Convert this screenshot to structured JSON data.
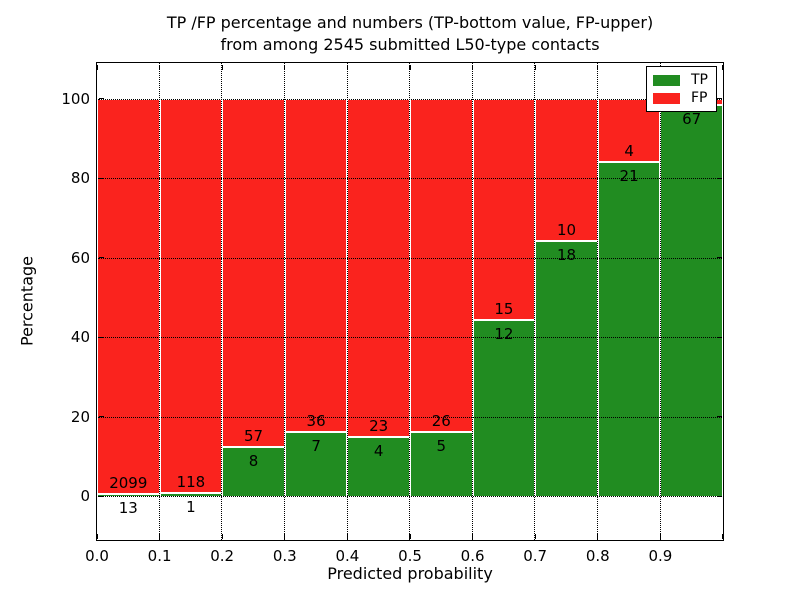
{
  "figure": {
    "background": "#ffffff"
  },
  "chart_data": {
    "type": "bar",
    "subtype": "stacked-percentage-histogram",
    "title_line1": "TP /FP percentage and numbers (TP-bottom value, FP-upper)",
    "title_line2": "from among 2545 submitted L50-type contacts",
    "xlabel": "Predicted probability",
    "ylabel": "Percentage",
    "xlim": [
      0.0,
      1.0
    ],
    "ylim": [
      -11,
      109
    ],
    "bin_width": 0.1,
    "bars_x_start": [
      0.0,
      0.1,
      0.2,
      0.3,
      0.4,
      0.5,
      0.6,
      0.7,
      0.8,
      0.9
    ],
    "x_tick_values": [
      0.0,
      0.1,
      0.2,
      0.3,
      0.4,
      0.5,
      0.6,
      0.7,
      0.8,
      0.9,
      1.0
    ],
    "x_tick_labels": [
      "0.0",
      "0.1",
      "0.2",
      "0.3",
      "0.4",
      "0.5",
      "0.6",
      "0.7",
      "0.8",
      "0.9",
      ""
    ],
    "y_tick_values": [
      0,
      20,
      40,
      60,
      80,
      100
    ],
    "y_tick_labels": [
      "0",
      "20",
      "40",
      "60",
      "80",
      "100"
    ],
    "grid": {
      "style": "dotted",
      "color": "#000000",
      "drawn_over_bars": true
    },
    "series": [
      {
        "name": "TP",
        "color": "#218c21",
        "values": [
          13,
          1,
          8,
          7,
          4,
          5,
          12,
          18,
          21,
          67
        ],
        "labels_shown": [
          "13",
          "1",
          "8",
          "7",
          "4",
          "5",
          "12",
          "18",
          "21",
          "67"
        ]
      },
      {
        "name": "FP",
        "color": "#fa231e",
        "values": [
          2099,
          118,
          57,
          36,
          23,
          26,
          15,
          10,
          4,
          1
        ],
        "labels_shown": [
          "2099",
          "118",
          "57",
          "36",
          "23",
          "26",
          "15",
          "10",
          "4",
          ""
        ]
      }
    ],
    "legend": {
      "position": "upper-right",
      "entries": [
        {
          "label": "TP",
          "color": "#218c21"
        },
        {
          "label": "FP",
          "color": "#fa231e"
        }
      ]
    },
    "axis_color": "#000000",
    "text_color": "#000000",
    "bar_edge_color": "#ffffff"
  }
}
